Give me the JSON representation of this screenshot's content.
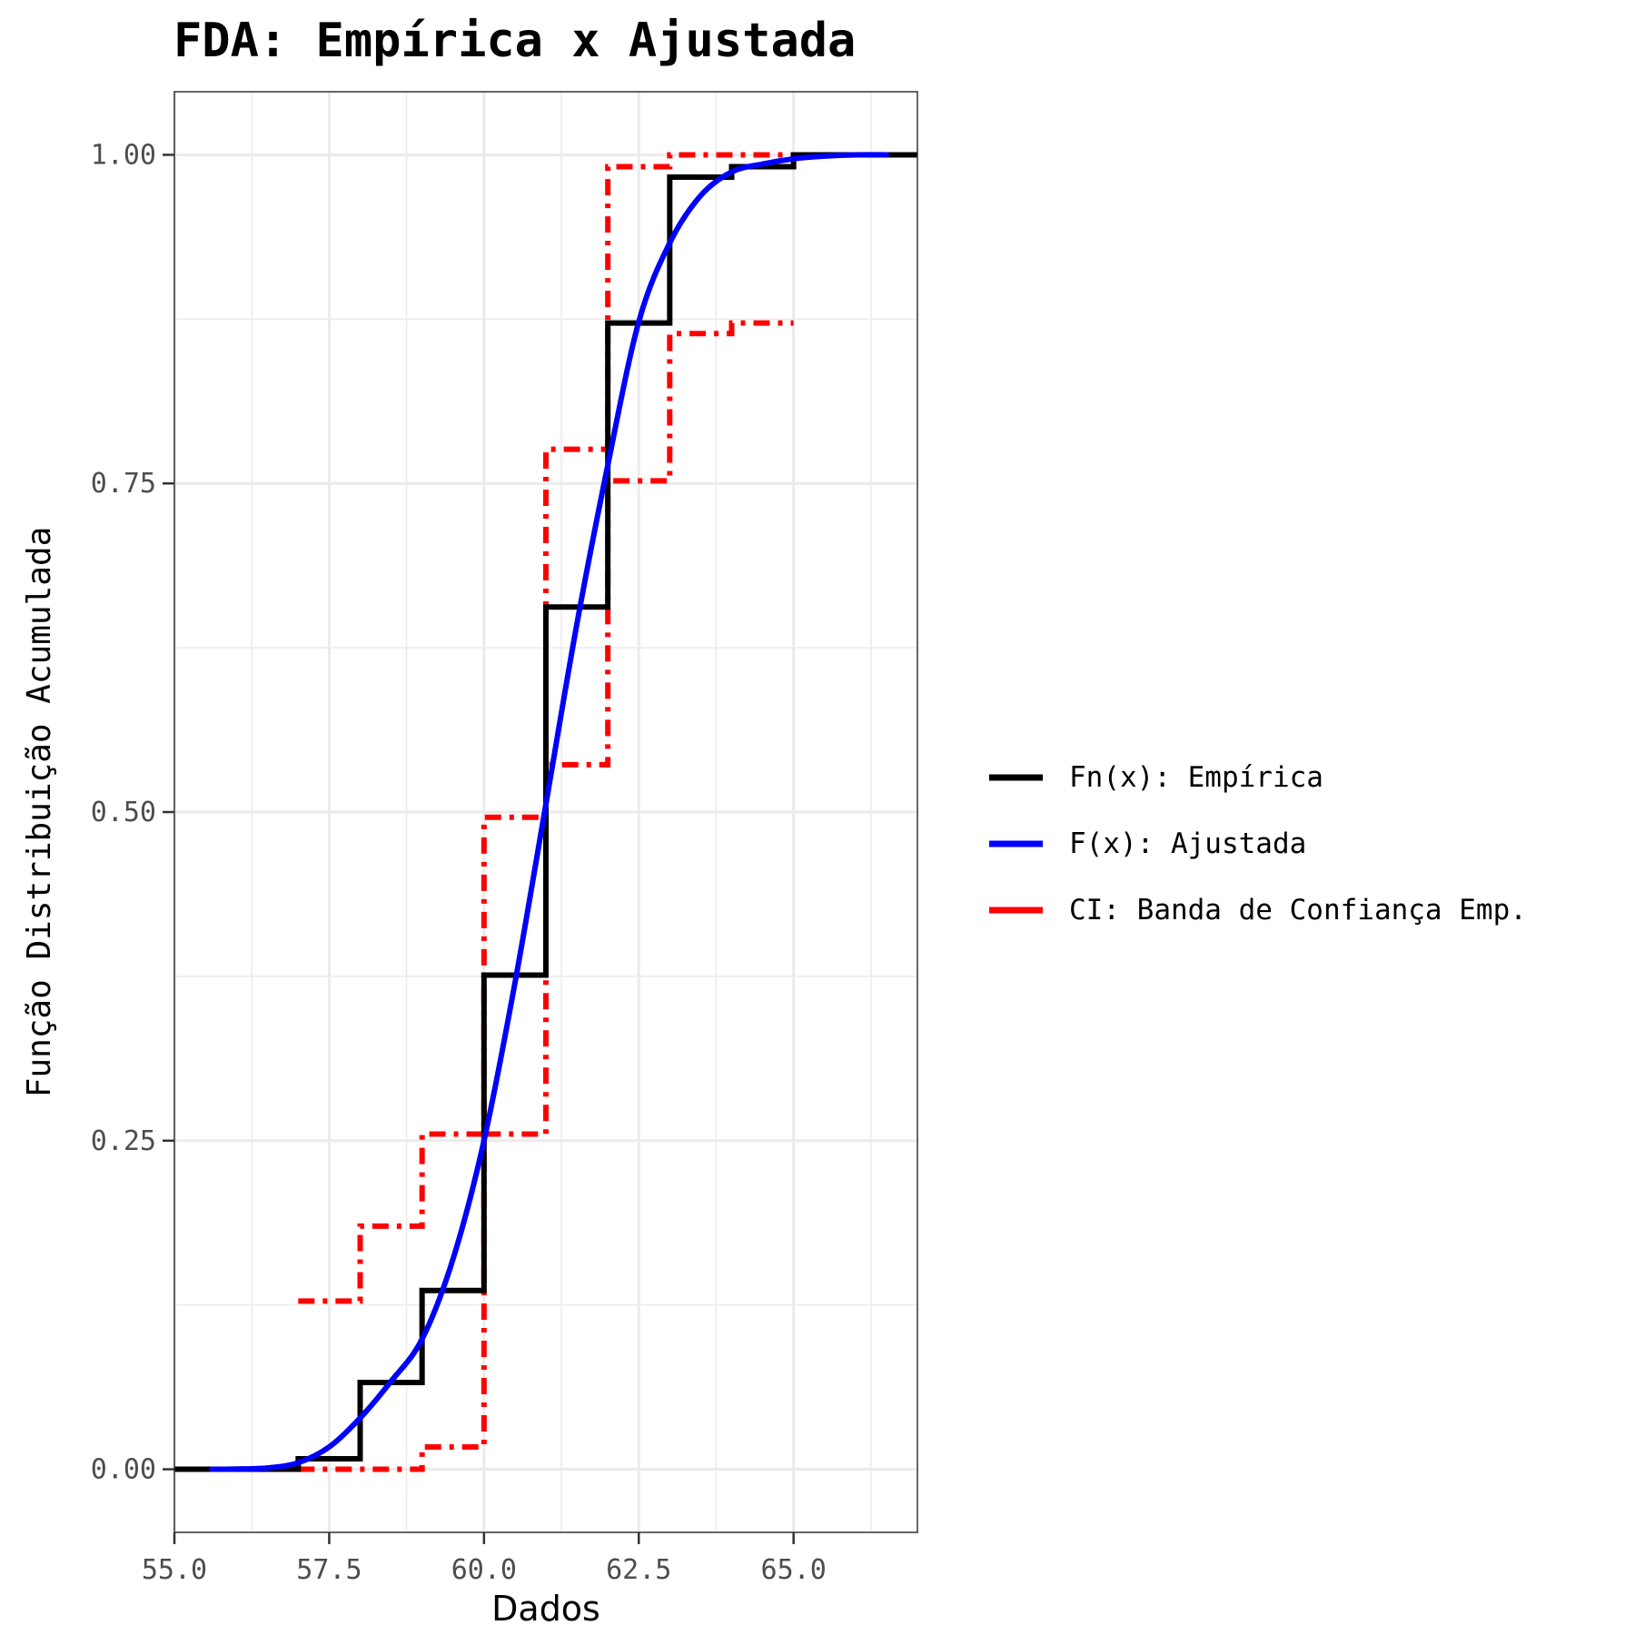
{
  "chart_data": {
    "type": "line",
    "title": "FDA: Empírica x Ajustada",
    "xlabel": "Dados",
    "ylabel": "Função Distribuição Acumulada",
    "xlim": [
      55,
      67
    ],
    "ylim": [
      -0.048,
      1.048
    ],
    "x_ticks": [
      "55.0",
      "57.5",
      "60.0",
      "62.5",
      "65.0"
    ],
    "x_tick_values": [
      55,
      57.5,
      60,
      62.5,
      65
    ],
    "y_ticks": [
      "0.00",
      "0.25",
      "0.50",
      "0.75",
      "1.00"
    ],
    "y_tick_values": [
      0,
      0.25,
      0.5,
      0.75,
      1
    ],
    "grid": true,
    "legend_position": "right",
    "series": [
      {
        "name": "Fn(x): Empírica",
        "color": "#000000",
        "style": "step",
        "x": [
          55,
          57,
          58,
          59,
          60,
          61,
          62,
          63,
          64,
          65,
          67
        ],
        "y": [
          0,
          0.008,
          0.066,
          0.136,
          0.376,
          0.656,
          0.872,
          0.983,
          0.991,
          1.0,
          1.0
        ]
      },
      {
        "name": "F(x): Ajustada",
        "color": "#0000FF",
        "style": "smooth",
        "x": [
          55.6,
          56,
          56.5,
          57,
          57.5,
          58,
          58.5,
          59,
          59.5,
          60,
          60.5,
          61,
          61.5,
          62,
          62.5,
          63,
          63.5,
          64,
          64.5,
          65,
          65.5,
          66,
          66.5
        ],
        "y": [
          0,
          0.0002,
          0.001,
          0.005,
          0.017,
          0.039,
          0.067,
          0.099,
          0.16,
          0.25,
          0.37,
          0.506,
          0.643,
          0.764,
          0.873,
          0.933,
          0.969,
          0.987,
          0.993,
          0.997,
          0.999,
          1.0,
          1.0
        ]
      },
      {
        "name": "CI: Banda de Confiança Emp.",
        "color": "#FF0000",
        "style": "step-dashed",
        "bands": [
          {
            "x": [
              57,
              58,
              59,
              60,
              61,
              62,
              63,
              65
            ],
            "y": [
              0.128,
              0.185,
              0.255,
              0.496,
              0.776,
              0.991,
              1.0,
              1.0
            ]
          },
          {
            "x": [
              57,
              59,
              60,
              61,
              62,
              63,
              64,
              65
            ],
            "y": [
              0,
              0.017,
              0.255,
              0.536,
              0.752,
              0.864,
              0.872,
              0.872
            ]
          }
        ]
      }
    ]
  }
}
